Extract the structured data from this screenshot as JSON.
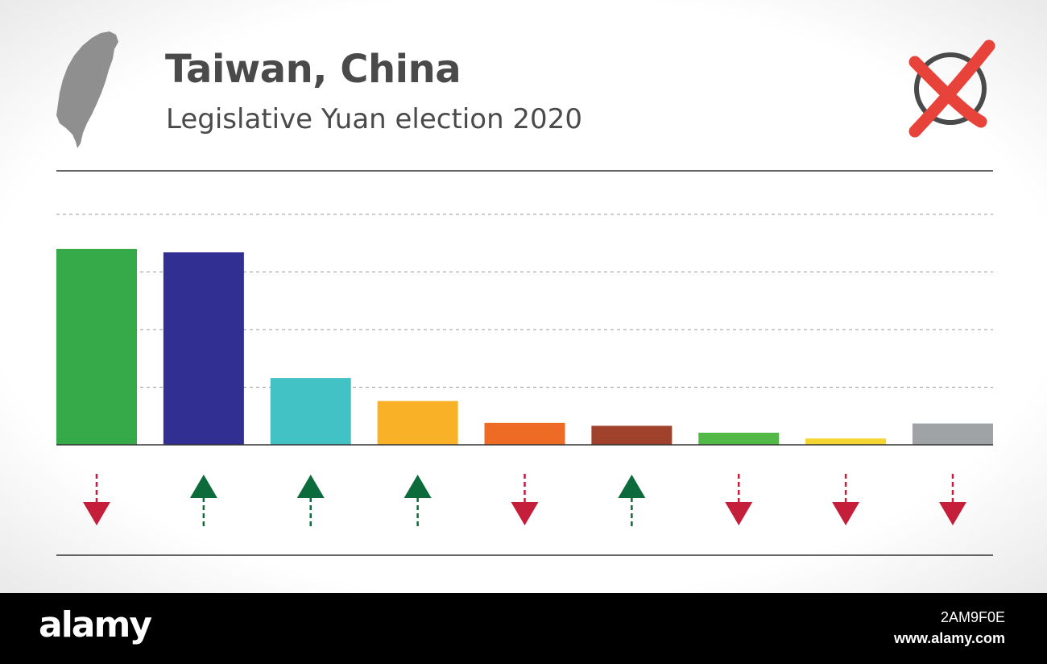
{
  "header": {
    "title": "Taiwan, China",
    "subtitle": "Legislative Yuan election 2020"
  },
  "icons": {
    "map": "taiwan-map-icon",
    "ballot": "ballot-cross-icon"
  },
  "colors": {
    "up_arrow": "#0c6b3a",
    "down_arrow": "#c41e3a",
    "axis": "#333333",
    "grid": "#9a9a9a",
    "ballot_cross": "#e8433a",
    "ballot_circle": "#4a4a4a",
    "map": "#8f8f8f"
  },
  "chart_data": {
    "type": "bar",
    "categories": [
      "",
      "",
      "",
      "",
      "",
      "",
      "",
      "",
      ""
    ],
    "values": [
      3.4,
      3.34,
      1.16,
      0.76,
      0.38,
      0.33,
      0.21,
      0.11,
      0.37
    ],
    "colors": [
      "#36aa48",
      "#312f92",
      "#43c2c6",
      "#f9b228",
      "#ee6b25",
      "#a0422b",
      "#52b947",
      "#f4d532",
      "#9fa3a5"
    ],
    "changes": [
      "down",
      "up",
      "up",
      "up",
      "down",
      "up",
      "down",
      "down",
      "down"
    ],
    "ylim": [
      0,
      4.0
    ],
    "gridlines": [
      1,
      2,
      3,
      4
    ],
    "grid": true,
    "title": "",
    "xlabel": "",
    "ylabel": ""
  },
  "footer": {
    "logo": "alamy",
    "image_id": "2AM9F0E",
    "url": "www.alamy.com"
  }
}
